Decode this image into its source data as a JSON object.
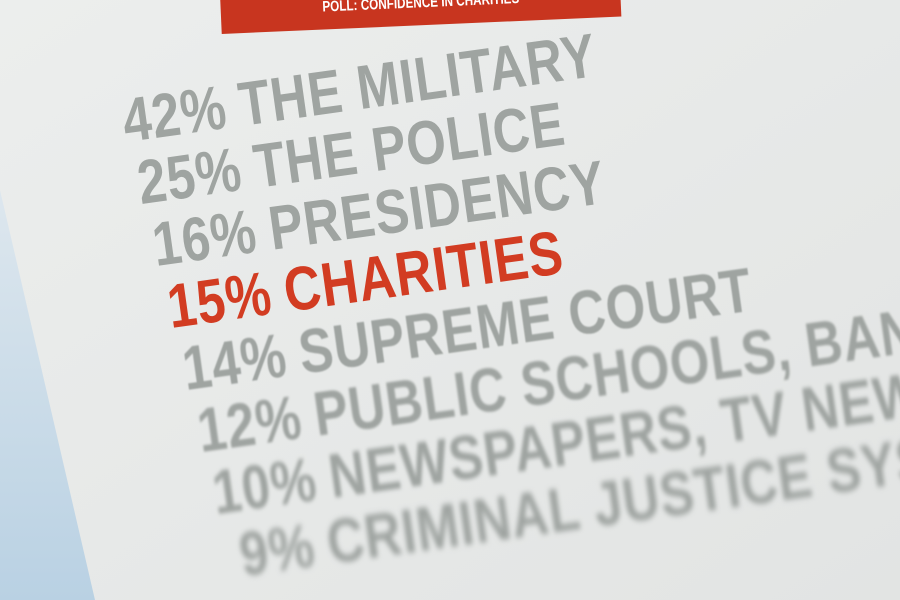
{
  "header": {
    "title": "POLL: CONFIDENCE IN CHARITIES"
  },
  "items": [
    {
      "percent": "42%",
      "label": "THE MILITARY",
      "color": "#9fa4a1"
    },
    {
      "percent": "25%",
      "label": "THE POLICE",
      "color": "#9fa4a1"
    },
    {
      "percent": "16%",
      "label": "PRESIDENCY",
      "color": "#9fa4a1"
    },
    {
      "percent": "15%",
      "label": "CHARITIES",
      "color": "#d23c22"
    },
    {
      "percent": "14%",
      "label": "SUPREME COURT",
      "color": "#9fa4a1"
    },
    {
      "percent": "12%",
      "label": "PUBLIC SCHOOLS, BANKS",
      "color": "#9fa4a1"
    },
    {
      "percent": "10%",
      "label": "NEWSPAPERS, TV NEWS",
      "color": "#9fa4a1"
    },
    {
      "percent": "9%",
      "label": "CRIMINAL JUSTICE SYSTEM",
      "color": "#9fa4a1"
    }
  ]
}
